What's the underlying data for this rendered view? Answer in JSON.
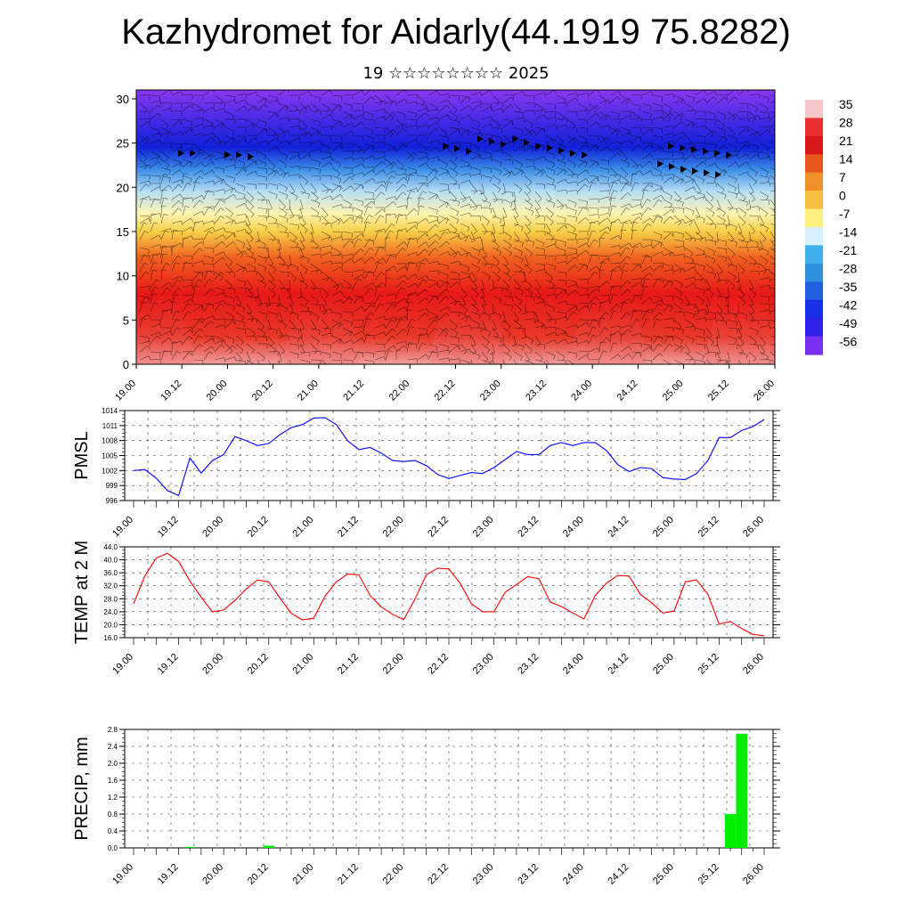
{
  "title": "Kazhydromet for Aidarly(44.1919 75.8282)",
  "subtitle": "19 ☆☆☆☆☆☆☆☆ 2025",
  "time_labels": [
    "19.00",
    "19.12",
    "20.00",
    "20.12",
    "21.00",
    "21.12",
    "22.00",
    "22.12",
    "23.00",
    "23.12",
    "24.00",
    "24.12",
    "25.00",
    "25.12",
    "26.00"
  ],
  "chart_data": [
    {
      "type": "heatmap",
      "name": "cross-section",
      "ylim": [
        0,
        31
      ],
      "yticks": [
        "0",
        "5",
        "10",
        "15",
        "20",
        "25",
        "30"
      ],
      "colorbar_labels": [
        "35",
        "28",
        "21",
        "14",
        "7",
        "0",
        "-7",
        "-14",
        "-21",
        "-28",
        "-35",
        "-42",
        "-49",
        "-56"
      ],
      "colorbar_colors": [
        "#f4c8c8",
        "#e83030",
        "#d81818",
        "#e8581c",
        "#f0902a",
        "#f8c040",
        "#fff080",
        "#d8f0ff",
        "#40b0ec",
        "#3090e0",
        "#2060e0",
        "#1830e8",
        "#3020e8",
        "#7a30f0"
      ],
      "profile_levels": [
        0,
        3,
        8,
        12,
        15,
        17,
        19.5,
        22,
        24.5,
        27,
        31
      ],
      "profile_colors": [
        "#f0a0a0",
        "#e83828",
        "#e81818",
        "#f06020",
        "#f8d048",
        "#fff4b0",
        "#b8dff4",
        "#3c8ee8",
        "#1020d8",
        "#3a28e4",
        "#8a38f0"
      ]
    },
    {
      "type": "line",
      "name": "PMSL",
      "ylabel": "PMSL",
      "ylim": [
        996,
        1014
      ],
      "yticks": [
        "996",
        "999",
        "1002",
        "1005",
        "1008",
        "1011",
        "1014"
      ],
      "color": "#0000ff",
      "values": [
        1002,
        1002.2,
        1000.5,
        998,
        997,
        1004.5,
        1001.5,
        1004,
        1005.2,
        1008.8,
        1008,
        1007,
        1007.4,
        1009.2,
        1010.6,
        1011.2,
        1012.5,
        1012.6,
        1011.2,
        1008,
        1006.2,
        1006.6,
        1005.5,
        1004,
        1003.8,
        1004,
        1003,
        1001.2,
        1000.4,
        1001,
        1001.6,
        1001.4,
        1002.6,
        1004.2,
        1005.8,
        1005.2,
        1005.2,
        1007,
        1007.6,
        1007,
        1007.6,
        1007.6,
        1006,
        1003.2,
        1001.8,
        1002.6,
        1002.4,
        1000.6,
        1000.3,
        1000.2,
        1001.4,
        1004,
        1008.6,
        1008.6,
        1010,
        1010.8,
        1012.2
      ]
    },
    {
      "type": "line",
      "name": "TEMP at 2 M",
      "ylabel": "TEMP at 2 M",
      "ylim": [
        16,
        44
      ],
      "yticks": [
        "16.0",
        "20.0",
        "24.0",
        "28.0",
        "32.0",
        "36.0",
        "40.0",
        "44.0"
      ],
      "color": "#ff0000",
      "values": [
        26.5,
        35,
        40.5,
        42,
        39.5,
        33.5,
        28.5,
        24,
        24.5,
        27.5,
        31,
        33.8,
        33.2,
        28.2,
        23.5,
        21.5,
        22,
        28.8,
        33.2,
        35.6,
        35.4,
        29,
        25.5,
        23.2,
        21.6,
        28,
        35.4,
        37.4,
        37.2,
        32.8,
        26.5,
        24,
        24,
        30,
        32.4,
        34.8,
        34.2,
        27,
        25.6,
        23.6,
        21.8,
        29,
        32.8,
        35.2,
        35,
        29.4,
        26.8,
        23.6,
        24.2,
        33.2,
        33.8,
        29.4,
        20.2,
        21,
        18.8,
        17,
        16.6
      ]
    },
    {
      "type": "bar",
      "name": "PRECIP",
      "ylabel": "PRECIP, mm",
      "ylim": [
        0,
        2.8
      ],
      "yticks": [
        "0.0",
        "0.4",
        "0.8",
        "1.2",
        "1.6",
        "2.0",
        "2.4",
        "2.8"
      ],
      "color": "#00ee00",
      "values": [
        0,
        0,
        0,
        0,
        0,
        0.02,
        0,
        0,
        0,
        0,
        0,
        0,
        0.05,
        0,
        0,
        0,
        0,
        0,
        0,
        0,
        0,
        0,
        0,
        0,
        0,
        0,
        0,
        0,
        0,
        0,
        0,
        0,
        0,
        0,
        0,
        0,
        0,
        0,
        0,
        0,
        0,
        0,
        0,
        0,
        0,
        0,
        0,
        0,
        0,
        0,
        0,
        0,
        0,
        0.8,
        2.7,
        0
      ]
    }
  ]
}
